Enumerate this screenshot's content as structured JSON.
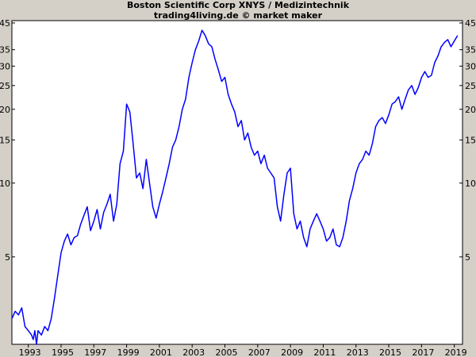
{
  "chart_data": {
    "type": "line",
    "title": "Boston Scientific Corp XNYS / Medizintechnik",
    "subtitle": "trading4living.de © market maker",
    "xlabel": "",
    "ylabel": "",
    "y_scale": "log",
    "xlim": [
      1992.0,
      2019.5
    ],
    "ylim": [
      2.2,
      46
    ],
    "x_ticks": [
      1993,
      1995,
      1997,
      1999,
      2001,
      2003,
      2005,
      2007,
      2009,
      2011,
      2013,
      2015,
      2017,
      2019
    ],
    "y_ticks": [
      5,
      10,
      15,
      20,
      25,
      30,
      35,
      45
    ],
    "y_tick_labels_left": [
      "5",
      "10",
      "15",
      "20",
      "25",
      "30",
      "35",
      "45"
    ],
    "y_tick_labels_right": [
      "5",
      "10",
      "15",
      "20",
      "25",
      "30",
      "35",
      "45"
    ],
    "grid": false,
    "legend": "none",
    "colors": {
      "line": "#0000ff",
      "plot_bg": "#ffffff",
      "frame_bg": "#d4d0c8"
    },
    "series": [
      {
        "values_x": [
          1992.0,
          1992.2,
          1992.4,
          1992.6,
          1992.8,
          1993.0,
          1993.2,
          1993.3,
          1993.4,
          1993.5,
          1993.6,
          1993.8,
          1994.0,
          1994.2,
          1994.4,
          1994.6,
          1994.8,
          1995.0,
          1995.2,
          1995.4,
          1995.6,
          1995.8,
          1996.0,
          1996.2,
          1996.4,
          1996.6,
          1996.8,
          1997.0,
          1997.2,
          1997.4,
          1997.6,
          1997.8,
          1998.0,
          1998.2,
          1998.4,
          1998.6,
          1998.8,
          1999.0,
          1999.2,
          1999.4,
          1999.6,
          1999.8,
          2000.0,
          2000.2,
          2000.4,
          2000.6,
          2000.8,
          2001.0,
          2001.2,
          2001.4,
          2001.6,
          2001.8,
          2002.0,
          2002.2,
          2002.4,
          2002.6,
          2002.8,
          2003.0,
          2003.2,
          2003.4,
          2003.6,
          2003.8,
          2004.0,
          2004.2,
          2004.4,
          2004.6,
          2004.8,
          2005.0,
          2005.2,
          2005.4,
          2005.6,
          2005.8,
          2006.0,
          2006.2,
          2006.4,
          2006.6,
          2006.8,
          2007.0,
          2007.2,
          2007.4,
          2007.6,
          2007.8,
          2008.0,
          2008.2,
          2008.4,
          2008.6,
          2008.8,
          2009.0,
          2009.2,
          2009.4,
          2009.6,
          2009.8,
          2010.0,
          2010.2,
          2010.4,
          2010.6,
          2010.8,
          2011.0,
          2011.2,
          2011.4,
          2011.6,
          2011.8,
          2012.0,
          2012.2,
          2012.4,
          2012.6,
          2012.8,
          2013.0,
          2013.2,
          2013.4,
          2013.6,
          2013.8,
          2014.0,
          2014.2,
          2014.4,
          2014.6,
          2014.8,
          2015.0,
          2015.2,
          2015.4,
          2015.6,
          2015.8,
          2016.0,
          2016.2,
          2016.4,
          2016.6,
          2016.8,
          2017.0,
          2017.2,
          2017.4,
          2017.6,
          2017.8,
          2018.0,
          2018.2,
          2018.4,
          2018.6,
          2018.8,
          2019.0,
          2019.2
        ],
        "values": [
          2.8,
          3.0,
          2.9,
          3.1,
          2.6,
          2.5,
          2.4,
          2.3,
          2.5,
          2.2,
          2.5,
          2.4,
          2.6,
          2.5,
          2.8,
          3.4,
          4.2,
          5.2,
          5.8,
          6.2,
          5.6,
          6.0,
          6.1,
          6.8,
          7.4,
          8.0,
          6.4,
          7.0,
          7.8,
          6.5,
          7.6,
          8.2,
          9.0,
          7.0,
          8.2,
          12.0,
          13.5,
          21.0,
          19.5,
          14.5,
          10.5,
          11.0,
          9.5,
          12.5,
          10.0,
          8.0,
          7.2,
          8.2,
          9.2,
          10.5,
          12.0,
          14.0,
          15.0,
          17.0,
          20.0,
          22.0,
          27.0,
          31.0,
          35.0,
          38.0,
          42.0,
          40.0,
          37.0,
          36.0,
          32.0,
          29.0,
          26.0,
          27.0,
          23.0,
          21.0,
          19.5,
          17.0,
          18.0,
          15.0,
          16.0,
          14.0,
          13.0,
          13.5,
          12.0,
          13.0,
          11.5,
          11.0,
          10.5,
          8.0,
          7.0,
          9.0,
          11.0,
          11.5,
          7.5,
          6.5,
          7.0,
          6.0,
          5.5,
          6.5,
          7.0,
          7.5,
          7.0,
          6.5,
          5.8,
          6.0,
          6.5,
          5.6,
          5.5,
          6.0,
          7.0,
          8.5,
          9.5,
          11.0,
          12.0,
          12.5,
          13.5,
          13.0,
          14.5,
          17.0,
          18.0,
          18.5,
          17.5,
          19.0,
          21.0,
          21.5,
          22.5,
          20.0,
          22.0,
          24.0,
          25.0,
          23.0,
          24.5,
          27.0,
          28.5,
          27.0,
          27.5,
          31.0,
          33.0,
          36.0,
          37.5,
          38.5,
          36.0,
          38.0,
          40.0
        ]
      }
    ]
  }
}
